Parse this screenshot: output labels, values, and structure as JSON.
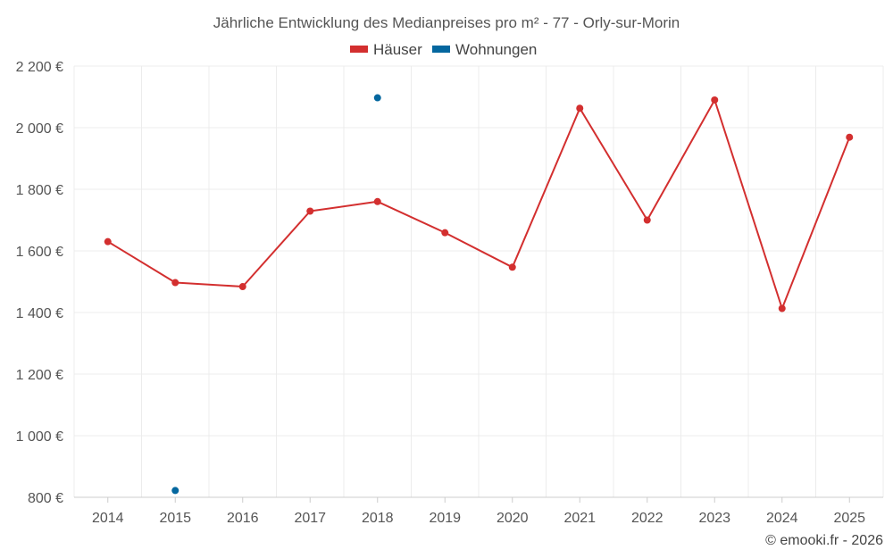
{
  "chart_data": {
    "type": "line",
    "title": "Jährliche Entwicklung des Medianpreises pro m² - 77 - Orly-sur-Morin",
    "x": [
      "2014",
      "2015",
      "2016",
      "2017",
      "2018",
      "2019",
      "2020",
      "2021",
      "2022",
      "2023",
      "2024",
      "2025"
    ],
    "y_ticks": [
      800,
      1000,
      1200,
      1400,
      1600,
      1800,
      2000,
      2200
    ],
    "y_tick_labels": [
      "800 €",
      "1 000 €",
      "1 200 €",
      "1 400 €",
      "1 600 €",
      "1 800 €",
      "2 000 €",
      "2 200 €"
    ],
    "ylim": [
      800,
      2200
    ],
    "xlabel": "",
    "ylabel": "",
    "grid": true,
    "legend_position": "top",
    "series": [
      {
        "name": "Häuser",
        "color": "#d32f2f",
        "values": [
          1630,
          1497,
          1484,
          1729,
          1760,
          1659,
          1547,
          2063,
          1700,
          2090,
          1413,
          1969
        ]
      },
      {
        "name": "Wohnungen",
        "color": "#04679f",
        "values": [
          null,
          822,
          null,
          null,
          2097,
          null,
          null,
          null,
          null,
          null,
          null,
          null
        ]
      }
    ]
  },
  "credit": "© emooki.fr - 2026"
}
